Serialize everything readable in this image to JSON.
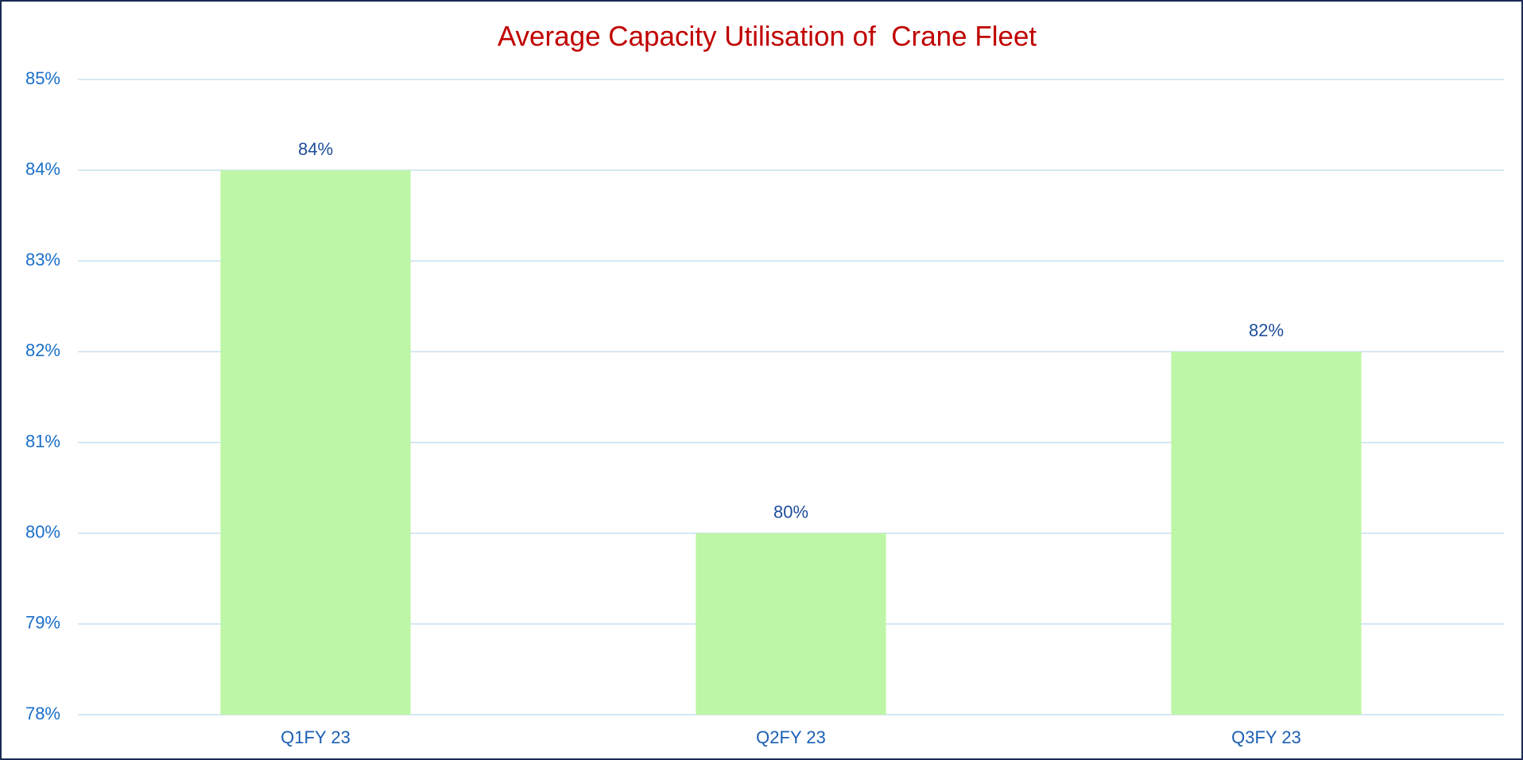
{
  "chart_data": {
    "type": "bar",
    "title": "Average Capacity Utilisation of  Crane Fleet",
    "categories": [
      "Q1FY 23",
      "Q2FY 23",
      "Q3FY 23"
    ],
    "values": [
      84,
      80,
      82
    ],
    "value_labels": [
      "84%",
      "80%",
      "82%"
    ],
    "color": "#bdf6a6",
    "ylim": [
      78,
      85
    ],
    "yticks": [
      {
        "value": 78,
        "label": "78%"
      },
      {
        "value": 79,
        "label": "79%"
      },
      {
        "value": 80,
        "label": "80%"
      },
      {
        "value": 81,
        "label": "81%"
      },
      {
        "value": 82,
        "label": "82%"
      },
      {
        "value": 83,
        "label": "83%"
      },
      {
        "value": 84,
        "label": "84%"
      },
      {
        "value": 85,
        "label": "85%"
      }
    ],
    "grid": true
  }
}
